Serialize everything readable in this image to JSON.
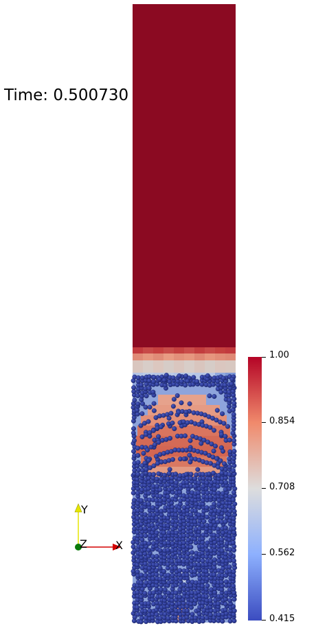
{
  "window": {
    "background": "#ffffff"
  },
  "annotation": {
    "time_text": "Time: 0.500730"
  },
  "scene": {
    "fluid_column": {
      "upper_color": "#8b0a22",
      "particle_color": "#2e3d96"
    }
  },
  "colorbar": {
    "min": 0.415,
    "max": 1.0,
    "labels": [
      "1.00",
      "0.854",
      "0.708",
      "0.562",
      "0.415"
    ],
    "colors": {
      "high": "#b40426",
      "mid_high": "#f08a6c",
      "mid": "#dddddd",
      "mid_low": "#8db0fe",
      "low": "#3b4cc0"
    }
  },
  "orientation_axes": {
    "x_label": "X",
    "y_label": "Y",
    "z_label": "Z",
    "x_color": "#d40000",
    "y_color": "#e6e600",
    "z_color": "#0a7a0a"
  }
}
